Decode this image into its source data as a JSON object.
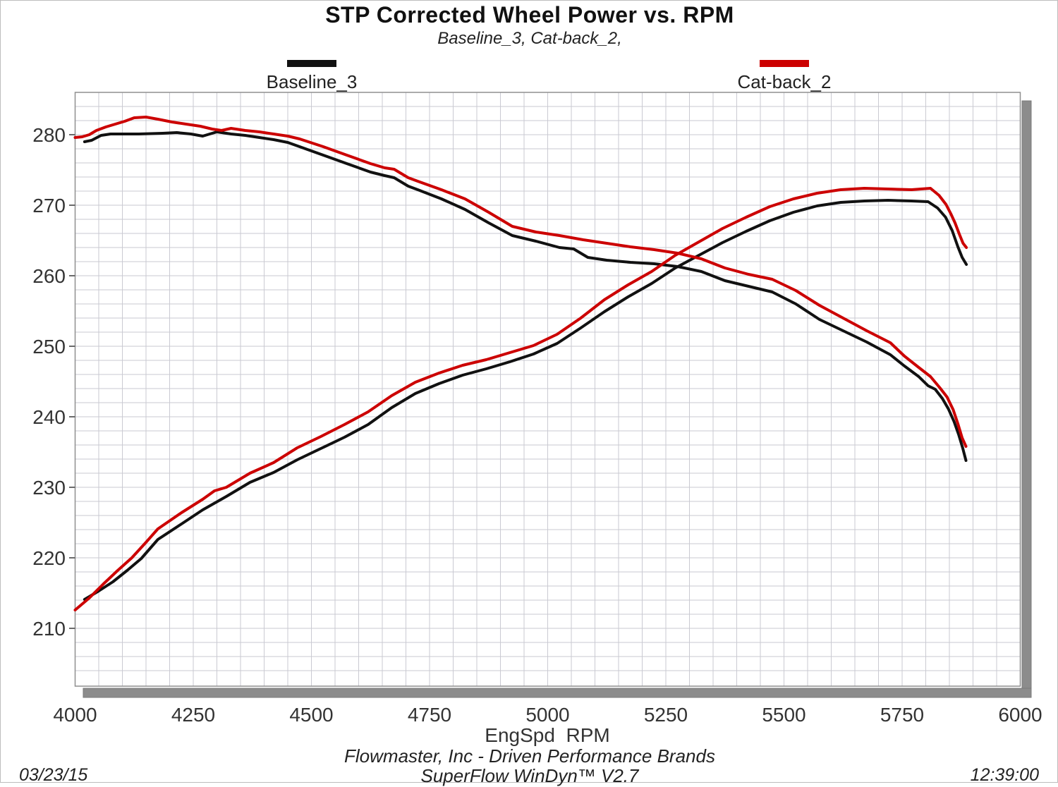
{
  "header": {
    "title": "STP Corrected Wheel Power vs. RPM",
    "subtitle": "Baseline_3, Cat-back_2,"
  },
  "legend": {
    "items": [
      {
        "label": "Baseline_3",
        "color": "#111111"
      },
      {
        "label": "Cat-back_2",
        "color": "#cc0000"
      }
    ]
  },
  "axes": {
    "x_title": "EngSpd  RPM",
    "x_major_ticks": [
      4000,
      4250,
      4500,
      4750,
      5000,
      5250,
      5500,
      5750,
      6000
    ],
    "y_major_ticks": [
      280,
      270,
      260,
      250,
      240,
      230,
      220,
      210
    ]
  },
  "footer": {
    "brand": "Flowmaster, Inc - Driven Performance Brands",
    "software": "SuperFlow WinDyn™ V2.7",
    "date": "03/23/15",
    "time": "12:39:00"
  },
  "chart_data": {
    "type": "line",
    "title": "STP Corrected Wheel Power vs. RPM",
    "subtitle": "Baseline_3, Cat-back_2,",
    "xlabel": "EngSpd RPM",
    "ylabel": "",
    "x_range": [
      4000,
      6000
    ],
    "x_minor_step": 50,
    "x_major_step": 250,
    "y_range": [
      201.8,
      286.0
    ],
    "y_minor_step": 2,
    "y_major_step": 10,
    "grid": true,
    "grid_color": "#cacad2",
    "legend_position": "top",
    "series": [
      {
        "name": "Baseline_3 torque curve (falling)",
        "color": "#111111",
        "points": [
          [
            4020,
            279.0
          ],
          [
            4035,
            279.2
          ],
          [
            4055,
            279.9
          ],
          [
            4075,
            280.1
          ],
          [
            4135,
            280.1
          ],
          [
            4185,
            280.2
          ],
          [
            4215,
            280.3
          ],
          [
            4245,
            280.1
          ],
          [
            4270,
            279.8
          ],
          [
            4300,
            280.4
          ],
          [
            4330,
            280.1
          ],
          [
            4360,
            279.9
          ],
          [
            4390,
            279.6
          ],
          [
            4420,
            279.3
          ],
          [
            4450,
            278.9
          ],
          [
            4475,
            278.3
          ],
          [
            4525,
            277.1
          ],
          [
            4575,
            275.9
          ],
          [
            4625,
            274.7
          ],
          [
            4655,
            274.2
          ],
          [
            4675,
            273.9
          ],
          [
            4705,
            272.7
          ],
          [
            4725,
            272.2
          ],
          [
            4775,
            270.9
          ],
          [
            4825,
            269.4
          ],
          [
            4875,
            267.5
          ],
          [
            4925,
            265.7
          ],
          [
            4950,
            265.3
          ],
          [
            4975,
            264.9
          ],
          [
            5025,
            264.0
          ],
          [
            5055,
            263.8
          ],
          [
            5085,
            262.6
          ],
          [
            5125,
            262.2
          ],
          [
            5175,
            261.9
          ],
          [
            5225,
            261.7
          ],
          [
            5275,
            261.3
          ],
          [
            5325,
            260.6
          ],
          [
            5375,
            259.3
          ],
          [
            5425,
            258.5
          ],
          [
            5475,
            257.7
          ],
          [
            5525,
            256.0
          ],
          [
            5575,
            253.8
          ],
          [
            5625,
            252.2
          ],
          [
            5675,
            250.6
          ],
          [
            5725,
            248.8
          ],
          [
            5755,
            247.2
          ],
          [
            5785,
            245.7
          ],
          [
            5805,
            244.4
          ],
          [
            5820,
            243.9
          ],
          [
            5835,
            242.6
          ],
          [
            5848,
            241.1
          ],
          [
            5860,
            239.3
          ],
          [
            5870,
            237.4
          ],
          [
            5878,
            235.6
          ],
          [
            5885,
            233.8
          ]
        ]
      },
      {
        "name": "Baseline_3 power curve (rising)",
        "color": "#111111",
        "points": [
          [
            4020,
            214.1
          ],
          [
            4050,
            215.3
          ],
          [
            4080,
            216.6
          ],
          [
            4110,
            218.2
          ],
          [
            4140,
            219.9
          ],
          [
            4175,
            222.6
          ],
          [
            4225,
            224.8
          ],
          [
            4270,
            226.8
          ],
          [
            4320,
            228.7
          ],
          [
            4370,
            230.7
          ],
          [
            4420,
            232.1
          ],
          [
            4470,
            233.9
          ],
          [
            4520,
            235.5
          ],
          [
            4570,
            237.1
          ],
          [
            4620,
            238.9
          ],
          [
            4670,
            241.3
          ],
          [
            4720,
            243.3
          ],
          [
            4770,
            244.7
          ],
          [
            4820,
            245.9
          ],
          [
            4870,
            246.8
          ],
          [
            4920,
            247.8
          ],
          [
            4970,
            248.9
          ],
          [
            5020,
            250.4
          ],
          [
            5070,
            252.6
          ],
          [
            5120,
            254.9
          ],
          [
            5170,
            257.0
          ],
          [
            5220,
            258.9
          ],
          [
            5270,
            261.1
          ],
          [
            5320,
            262.9
          ],
          [
            5370,
            264.7
          ],
          [
            5420,
            266.3
          ],
          [
            5470,
            267.8
          ],
          [
            5520,
            269.0
          ],
          [
            5570,
            269.9
          ],
          [
            5620,
            270.4
          ],
          [
            5670,
            270.6
          ],
          [
            5720,
            270.7
          ],
          [
            5770,
            270.6
          ],
          [
            5805,
            270.5
          ],
          [
            5825,
            269.6
          ],
          [
            5842,
            268.3
          ],
          [
            5856,
            266.4
          ],
          [
            5868,
            264.1
          ],
          [
            5877,
            262.6
          ],
          [
            5886,
            261.6
          ]
        ]
      },
      {
        "name": "Cat-back_2 torque curve (falling)",
        "color": "#cc0000",
        "points": [
          [
            4000,
            279.6
          ],
          [
            4015,
            279.7
          ],
          [
            4030,
            280.0
          ],
          [
            4045,
            280.6
          ],
          [
            4065,
            281.1
          ],
          [
            4085,
            281.5
          ],
          [
            4105,
            281.9
          ],
          [
            4125,
            282.4
          ],
          [
            4150,
            282.5
          ],
          [
            4175,
            282.2
          ],
          [
            4205,
            281.8
          ],
          [
            4235,
            281.5
          ],
          [
            4265,
            281.2
          ],
          [
            4290,
            280.8
          ],
          [
            4310,
            280.6
          ],
          [
            4330,
            280.9
          ],
          [
            4360,
            280.6
          ],
          [
            4390,
            280.4
          ],
          [
            4420,
            280.1
          ],
          [
            4450,
            279.8
          ],
          [
            4475,
            279.4
          ],
          [
            4525,
            278.3
          ],
          [
            4575,
            277.1
          ],
          [
            4625,
            275.9
          ],
          [
            4655,
            275.3
          ],
          [
            4675,
            275.1
          ],
          [
            4705,
            273.9
          ],
          [
            4725,
            273.4
          ],
          [
            4775,
            272.2
          ],
          [
            4825,
            270.9
          ],
          [
            4875,
            269.0
          ],
          [
            4925,
            267.0
          ],
          [
            4950,
            266.6
          ],
          [
            4975,
            266.2
          ],
          [
            5025,
            265.7
          ],
          [
            5075,
            265.1
          ],
          [
            5125,
            264.6
          ],
          [
            5175,
            264.1
          ],
          [
            5225,
            263.7
          ],
          [
            5275,
            263.2
          ],
          [
            5325,
            262.4
          ],
          [
            5375,
            261.1
          ],
          [
            5425,
            260.2
          ],
          [
            5475,
            259.5
          ],
          [
            5525,
            257.9
          ],
          [
            5575,
            255.8
          ],
          [
            5625,
            254.0
          ],
          [
            5675,
            252.2
          ],
          [
            5725,
            250.5
          ],
          [
            5755,
            248.6
          ],
          [
            5785,
            247.0
          ],
          [
            5810,
            245.7
          ],
          [
            5830,
            244.1
          ],
          [
            5845,
            242.8
          ],
          [
            5858,
            241.0
          ],
          [
            5868,
            239.0
          ],
          [
            5877,
            237.0
          ],
          [
            5885,
            235.8
          ]
        ]
      },
      {
        "name": "Cat-back_2 power curve (rising)",
        "color": "#cc0000",
        "points": [
          [
            4000,
            212.6
          ],
          [
            4030,
            214.3
          ],
          [
            4060,
            216.3
          ],
          [
            4090,
            218.2
          ],
          [
            4120,
            220.0
          ],
          [
            4150,
            222.2
          ],
          [
            4175,
            224.1
          ],
          [
            4225,
            226.4
          ],
          [
            4270,
            228.3
          ],
          [
            4295,
            229.5
          ],
          [
            4320,
            230.0
          ],
          [
            4370,
            232.0
          ],
          [
            4420,
            233.5
          ],
          [
            4470,
            235.6
          ],
          [
            4520,
            237.2
          ],
          [
            4570,
            238.9
          ],
          [
            4620,
            240.7
          ],
          [
            4670,
            243.0
          ],
          [
            4720,
            244.9
          ],
          [
            4770,
            246.2
          ],
          [
            4820,
            247.3
          ],
          [
            4870,
            248.1
          ],
          [
            4920,
            249.1
          ],
          [
            4970,
            250.1
          ],
          [
            5020,
            251.7
          ],
          [
            5070,
            254.0
          ],
          [
            5120,
            256.6
          ],
          [
            5170,
            258.7
          ],
          [
            5220,
            260.6
          ],
          [
            5270,
            262.9
          ],
          [
            5320,
            264.8
          ],
          [
            5370,
            266.7
          ],
          [
            5420,
            268.3
          ],
          [
            5470,
            269.8
          ],
          [
            5520,
            270.9
          ],
          [
            5570,
            271.7
          ],
          [
            5620,
            272.2
          ],
          [
            5670,
            272.4
          ],
          [
            5720,
            272.3
          ],
          [
            5770,
            272.2
          ],
          [
            5810,
            272.4
          ],
          [
            5828,
            271.4
          ],
          [
            5843,
            270.1
          ],
          [
            5853,
            268.8
          ],
          [
            5862,
            267.5
          ],
          [
            5871,
            265.9
          ],
          [
            5879,
            264.6
          ],
          [
            5886,
            264.0
          ]
        ]
      }
    ]
  }
}
